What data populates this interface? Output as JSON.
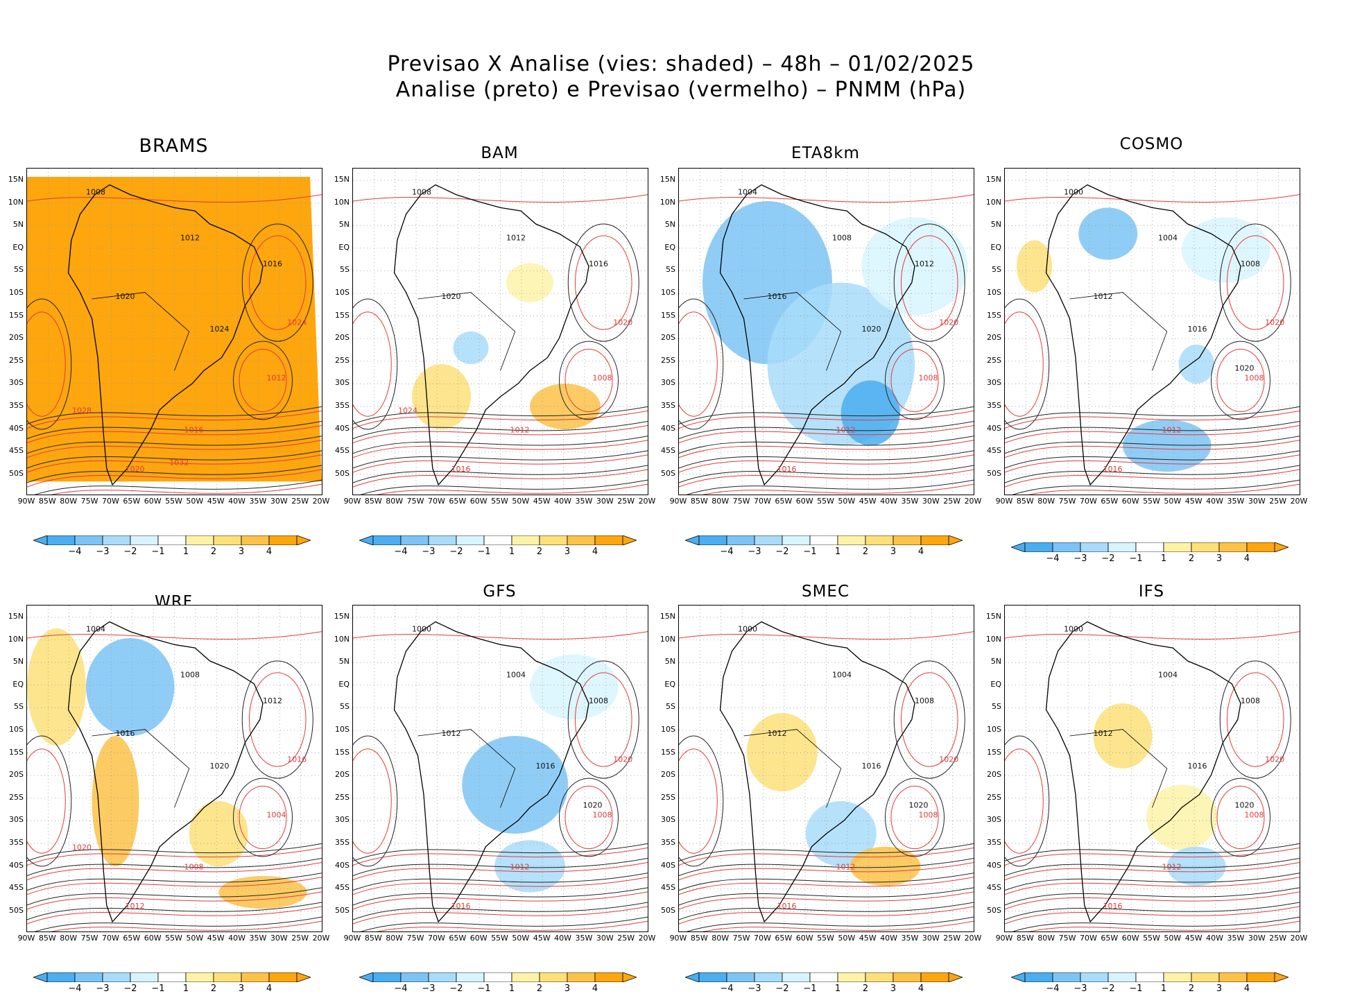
{
  "figure": {
    "title_line1": "Previsao X Analise (vies: shaded) – 48h – 01/02/2025",
    "title_line2": "Analise (preto) e Previsao (vermelho) – PNMM (hPa)"
  },
  "axes": {
    "lat_labels": [
      "15N",
      "10N",
      "5N",
      "EQ",
      "5S",
      "10S",
      "15S",
      "20S",
      "25S",
      "30S",
      "35S",
      "40S",
      "45S",
      "50S"
    ],
    "lon_labels": [
      "90W",
      "85W",
      "80W",
      "75W",
      "70W",
      "65W",
      "60W",
      "55W",
      "50W",
      "45W",
      "40W",
      "35W",
      "30W",
      "25W",
      "20W"
    ]
  },
  "colorbar": {
    "labels": [
      "−4",
      "−3",
      "−2",
      "−1",
      "1",
      "2",
      "3",
      "4"
    ],
    "colors": [
      "#4aaef0",
      "#7cc4f5",
      "#a8dcfa",
      "#d8f4fe",
      "#ffffff",
      "#fdf3a8",
      "#fde07a",
      "#fdc248",
      "#fda60e"
    ]
  },
  "panels": [
    {
      "name": "BRAMS",
      "isobars": [
        "1008",
        "1012",
        "1016",
        "1020",
        "1024"
      ],
      "forecast_isobars": [
        "1012",
        "1016",
        "1020",
        "1024",
        "1028",
        "1032"
      ]
    },
    {
      "name": "BAM",
      "isobars": [
        "1008",
        "1012",
        "1016",
        "1020"
      ],
      "forecast_isobars": [
        "1008",
        "1012",
        "1016",
        "1020",
        "1024"
      ]
    },
    {
      "name": "ETA8km",
      "isobars": [
        "1004",
        "1008",
        "1012",
        "1016",
        "1020"
      ],
      "forecast_isobars": [
        "1008",
        "1012",
        "1016",
        "1020"
      ]
    },
    {
      "name": "COSMO",
      "isobars": [
        "1000",
        "1004",
        "1008",
        "1012",
        "1016",
        "1020"
      ],
      "forecast_isobars": [
        "1008",
        "1012",
        "1016",
        "1020"
      ]
    },
    {
      "name": "WRF",
      "isobars": [
        "1004",
        "1008",
        "1012",
        "1016",
        "1020"
      ],
      "forecast_isobars": [
        "1004",
        "1008",
        "1012",
        "1016",
        "1020"
      ]
    },
    {
      "name": "GFS",
      "isobars": [
        "1000",
        "1004",
        "1008",
        "1012",
        "1016",
        "1020"
      ],
      "forecast_isobars": [
        "1008",
        "1012",
        "1016",
        "1020"
      ]
    },
    {
      "name": "SMEC",
      "isobars": [
        "1000",
        "1004",
        "1008",
        "1012",
        "1016",
        "1020"
      ],
      "forecast_isobars": [
        "1008",
        "1012",
        "1016",
        "1020"
      ]
    },
    {
      "name": "IFS",
      "isobars": [
        "1000",
        "1004",
        "1008",
        "1012",
        "1016",
        "1020"
      ],
      "forecast_isobars": [
        "1008",
        "1012",
        "1016",
        "1020"
      ]
    }
  ]
}
